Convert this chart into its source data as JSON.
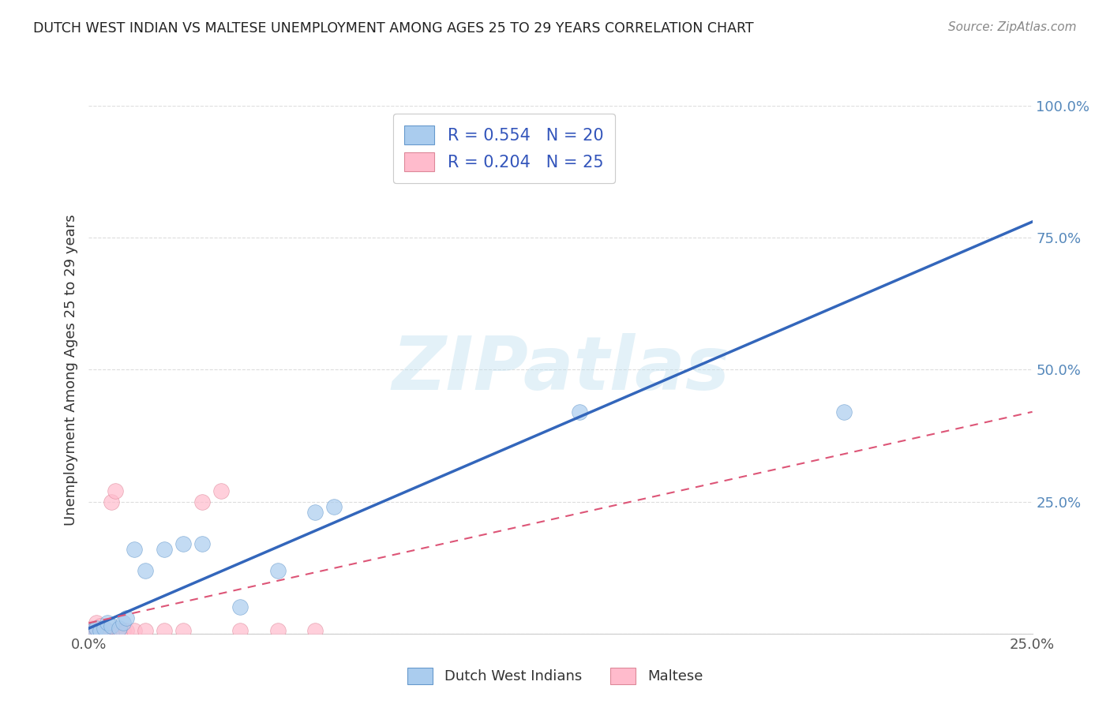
{
  "title": "DUTCH WEST INDIAN VS MALTESE UNEMPLOYMENT AMONG AGES 25 TO 29 YEARS CORRELATION CHART",
  "source": "Source: ZipAtlas.com",
  "ylabel": "Unemployment Among Ages 25 to 29 years",
  "xlim": [
    0.0,
    0.25
  ],
  "ylim": [
    0.0,
    1.0
  ],
  "xticks": [
    0.0,
    0.25
  ],
  "xtick_labels": [
    "0.0%",
    "25.0%"
  ],
  "yticks": [
    0.0,
    0.25,
    0.5,
    0.75,
    1.0
  ],
  "ytick_labels": [
    "",
    "25.0%",
    "50.0%",
    "75.0%",
    "100.0%"
  ],
  "blue_scatter": [
    [
      0.001,
      0.005
    ],
    [
      0.002,
      0.01
    ],
    [
      0.003,
      0.005
    ],
    [
      0.004,
      0.01
    ],
    [
      0.005,
      0.02
    ],
    [
      0.006,
      0.015
    ],
    [
      0.008,
      0.01
    ],
    [
      0.009,
      0.02
    ],
    [
      0.01,
      0.03
    ],
    [
      0.012,
      0.16
    ],
    [
      0.015,
      0.12
    ],
    [
      0.02,
      0.16
    ],
    [
      0.025,
      0.17
    ],
    [
      0.03,
      0.17
    ],
    [
      0.04,
      0.05
    ],
    [
      0.05,
      0.12
    ],
    [
      0.06,
      0.23
    ],
    [
      0.065,
      0.24
    ],
    [
      0.13,
      0.42
    ],
    [
      0.2,
      0.42
    ]
  ],
  "pink_scatter": [
    [
      0.0,
      0.005
    ],
    [
      0.001,
      0.005
    ],
    [
      0.001,
      0.01
    ],
    [
      0.002,
      0.005
    ],
    [
      0.002,
      0.01
    ],
    [
      0.002,
      0.02
    ],
    [
      0.003,
      0.005
    ],
    [
      0.003,
      0.015
    ],
    [
      0.004,
      0.005
    ],
    [
      0.004,
      0.01
    ],
    [
      0.005,
      0.005
    ],
    [
      0.006,
      0.25
    ],
    [
      0.007,
      0.27
    ],
    [
      0.008,
      0.005
    ],
    [
      0.009,
      0.005
    ],
    [
      0.01,
      0.005
    ],
    [
      0.012,
      0.005
    ],
    [
      0.015,
      0.005
    ],
    [
      0.02,
      0.005
    ],
    [
      0.025,
      0.005
    ],
    [
      0.03,
      0.25
    ],
    [
      0.035,
      0.27
    ],
    [
      0.04,
      0.005
    ],
    [
      0.05,
      0.005
    ],
    [
      0.06,
      0.005
    ]
  ],
  "blue_line": [
    [
      0.0,
      0.01
    ],
    [
      0.25,
      0.78
    ]
  ],
  "pink_line": [
    [
      0.0,
      0.02
    ],
    [
      0.25,
      0.42
    ]
  ],
  "blue_R": 0.554,
  "blue_N": 20,
  "pink_R": 0.204,
  "pink_N": 25,
  "blue_scatter_color": "#aaccee",
  "blue_scatter_edge": "#6699cc",
  "pink_scatter_color": "#ffbbcc",
  "pink_scatter_edge": "#dd8899",
  "blue_line_color": "#3366bb",
  "pink_line_color": "#dd5577",
  "watermark_text": "ZIPatlas",
  "watermark_color": "#bbddee",
  "background_color": "#ffffff",
  "grid_color": "#dddddd",
  "ytick_color": "#5588bb",
  "xtick_color": "#555555"
}
